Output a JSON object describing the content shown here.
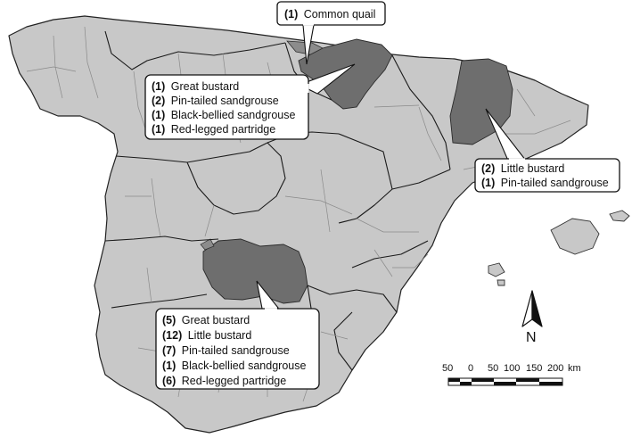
{
  "callouts": [
    {
      "id": "north",
      "items": [
        {
          "count": "(1)",
          "species": "Common quail"
        }
      ]
    },
    {
      "id": "northwest",
      "items": [
        {
          "count": "(1)",
          "species": "Great bustard"
        },
        {
          "count": "(2)",
          "species": "Pin-tailed sandgrouse"
        },
        {
          "count": "(1)",
          "species": "Black-bellied sandgrouse"
        },
        {
          "count": "(1)",
          "species": "Red-legged partridge"
        }
      ]
    },
    {
      "id": "northeast",
      "items": [
        {
          "count": "(2)",
          "species": "Little bustard"
        },
        {
          "count": "(1)",
          "species": "Pin-tailed sandgrouse"
        }
      ]
    },
    {
      "id": "center",
      "items": [
        {
          "count": "(5)",
          "species": "Great bustard"
        },
        {
          "count": "(12)",
          "species": "Little bustard"
        },
        {
          "count": "(7)",
          "species": "Pin-tailed sandgrouse"
        },
        {
          "count": "(1)",
          "species": "Black-bellied sandgrouse"
        },
        {
          "count": "(6)",
          "species": "Red-legged partridge"
        }
      ]
    }
  ],
  "north_arrow": {
    "label": "N"
  },
  "scale_bar": {
    "ticks": [
      "50",
      "0",
      "50",
      "100",
      "150",
      "200"
    ],
    "unit": "km"
  },
  "colors": {
    "land": "#c8c8c8",
    "highlight": "#6e6e6e",
    "border": "#222222"
  }
}
